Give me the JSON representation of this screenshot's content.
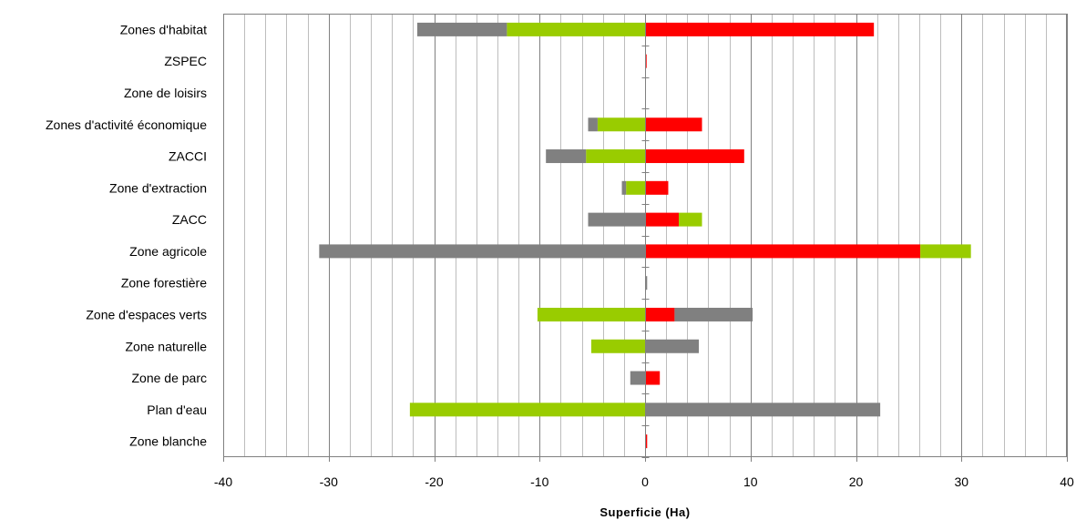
{
  "chart_data": {
    "type": "bar",
    "orientation": "horizontal",
    "stacked": true,
    "title": "",
    "xlabel": "Superficie (Ha)",
    "ylabel": "",
    "xlim": [
      -40,
      40
    ],
    "x_ticks": [
      -40,
      -30,
      -20,
      -10,
      0,
      10,
      20,
      30,
      40
    ],
    "x_tick_labels": [
      "-40",
      "-30",
      "-20",
      "-10",
      "0",
      "10",
      "20",
      "30",
      "40"
    ],
    "minor_gridline_step": 2,
    "grid": true,
    "legend": "none",
    "categories": [
      "Zones d'habitat",
      "ZSPEC",
      "Zone de loisirs",
      "Zones d'activité économique",
      "ZACCI",
      "Zone d'extraction",
      "ZACC",
      "Zone agricole",
      "Zone forestière",
      "Zone d'espaces verts",
      "Zone naturelle",
      "Zone de parc",
      "Plan d'eau",
      "Zone blanche"
    ],
    "colors": {
      "red": "#ff0000",
      "green": "#99cc00",
      "gray": "#808080"
    },
    "segments": [
      [
        {
          "color": "red",
          "from": 0,
          "to": 21.7
        },
        {
          "color": "green",
          "from": 0,
          "to": -13.1
        },
        {
          "color": "gray",
          "from": -13.1,
          "to": -21.6
        }
      ],
      [
        {
          "color": "red",
          "from": 0,
          "to": 0.15
        }
      ],
      [],
      [
        {
          "color": "red",
          "from": 0,
          "to": 5.4
        },
        {
          "color": "green",
          "from": 0,
          "to": -4.5
        },
        {
          "color": "gray",
          "from": -4.5,
          "to": -5.4
        }
      ],
      [
        {
          "color": "red",
          "from": 0,
          "to": 9.4
        },
        {
          "color": "green",
          "from": 0,
          "to": -5.6
        },
        {
          "color": "gray",
          "from": -5.6,
          "to": -9.4
        }
      ],
      [
        {
          "color": "red",
          "from": 0,
          "to": 2.2
        },
        {
          "color": "green",
          "from": 0,
          "to": -1.8
        },
        {
          "color": "gray",
          "from": -1.8,
          "to": -2.2
        }
      ],
      [
        {
          "color": "red",
          "from": 0,
          "to": 3.2
        },
        {
          "color": "green",
          "from": 3.2,
          "to": 5.4
        },
        {
          "color": "gray",
          "from": 0,
          "to": -5.4
        }
      ],
      [
        {
          "color": "red",
          "from": 0,
          "to": 26.1
        },
        {
          "color": "green",
          "from": 26.1,
          "to": 30.9
        },
        {
          "color": "gray",
          "from": 0,
          "to": -30.9
        }
      ],
      [
        {
          "color": "gray",
          "from": 0,
          "to": 0.2
        }
      ],
      [
        {
          "color": "red",
          "from": 0,
          "to": 2.8
        },
        {
          "color": "gray",
          "from": 2.8,
          "to": 10.2
        },
        {
          "color": "green",
          "from": 0,
          "to": -10.2
        }
      ],
      [
        {
          "color": "gray",
          "from": 0,
          "to": 5.1
        },
        {
          "color": "green",
          "from": 0,
          "to": -5.1
        }
      ],
      [
        {
          "color": "red",
          "from": 0,
          "to": 1.4
        },
        {
          "color": "gray",
          "from": 0,
          "to": -1.4
        }
      ],
      [
        {
          "color": "gray",
          "from": 0,
          "to": 22.3
        },
        {
          "color": "green",
          "from": 0,
          "to": -22.3
        }
      ],
      [
        {
          "color": "red",
          "from": 0,
          "to": 0.2
        }
      ]
    ]
  }
}
